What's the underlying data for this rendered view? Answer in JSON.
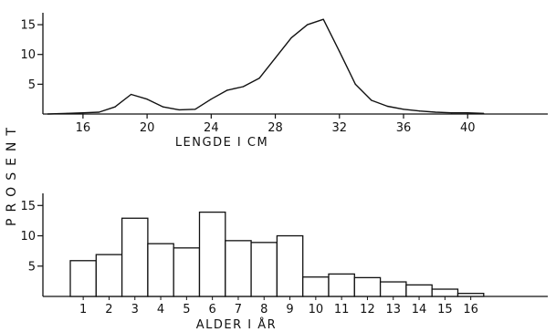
{
  "ylabel": "PROSENT",
  "chart_data": [
    {
      "type": "line",
      "xlabel": "LENGDE I CM",
      "ylabel": "PROSENT",
      "xlim": [
        13.5,
        45
      ],
      "ylim": [
        0,
        17
      ],
      "xticks": [
        16,
        20,
        24,
        28,
        32,
        36,
        40
      ],
      "yticks": [
        5,
        10,
        15
      ],
      "grid": false,
      "series": [
        {
          "x": [
            13.8,
            15,
            16,
            17,
            18,
            19,
            20,
            21,
            22,
            23,
            24,
            25,
            26,
            27,
            28,
            29,
            30,
            31,
            32,
            33,
            34,
            35,
            36,
            37,
            38,
            39,
            40,
            41
          ],
          "y": [
            0,
            0.1,
            0.2,
            0.3,
            1.2,
            3.3,
            2.5,
            1.2,
            0.7,
            0.8,
            2.5,
            4.0,
            4.6,
            6.0,
            9.4,
            12.8,
            15.0,
            15.9,
            10.5,
            5.0,
            2.3,
            1.3,
            0.8,
            0.5,
            0.3,
            0.2,
            0.2,
            0.1
          ]
        }
      ]
    },
    {
      "type": "bar",
      "xlabel": "ALDER I ÅR",
      "ylabel": "PROSENT",
      "ylim": [
        0,
        17
      ],
      "yticks": [
        5,
        10,
        15
      ],
      "grid": false,
      "categories": [
        "1",
        "2",
        "3",
        "4",
        "5",
        "6",
        "7",
        "8",
        "9",
        "10",
        "11",
        "12",
        "13",
        "14",
        "15",
        "16"
      ],
      "values": [
        5.9,
        6.9,
        12.9,
        8.7,
        8.0,
        13.9,
        9.2,
        8.9,
        10.0,
        3.2,
        3.7,
        3.1,
        2.4,
        1.9,
        1.2,
        0.5
      ]
    }
  ]
}
